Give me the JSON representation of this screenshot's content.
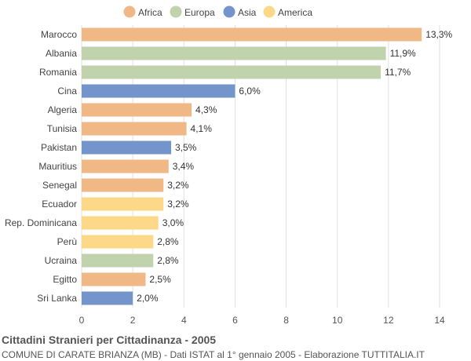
{
  "title": "Cittadini Stranieri per Cittadinanza - 2005",
  "subtitle": "COMUNE DI CARATE BRIANZA (MB) - Dati ISTAT al 1° gennaio 2005 - Elaborazione TUTTITALIA.IT",
  "chart_data": {
    "type": "bar",
    "orientation": "horizontal",
    "categories": [
      "Marocco",
      "Albania",
      "Romania",
      "Cina",
      "Algeria",
      "Tunisia",
      "Pakistan",
      "Mauritius",
      "Senegal",
      "Ecuador",
      "Rep. Dominicana",
      "Perù",
      "Ucraina",
      "Egitto",
      "Sri Lanka"
    ],
    "values": [
      13.3,
      11.9,
      11.7,
      6.0,
      4.3,
      4.1,
      3.5,
      3.4,
      3.2,
      3.2,
      3.0,
      2.8,
      2.8,
      2.5,
      2.0
    ],
    "value_labels": [
      "13,3%",
      "11,9%",
      "11,7%",
      "6,0%",
      "4,3%",
      "4,1%",
      "3,5%",
      "3,4%",
      "3,2%",
      "3,2%",
      "3,0%",
      "2,8%",
      "2,8%",
      "2,5%",
      "2,0%"
    ],
    "groups": [
      "Africa",
      "Europa",
      "Europa",
      "Asia",
      "Africa",
      "Africa",
      "Asia",
      "Africa",
      "Africa",
      "America",
      "America",
      "America",
      "Europa",
      "Africa",
      "Asia"
    ],
    "legend": [
      {
        "name": "Africa",
        "color": "#f0b885"
      },
      {
        "name": "Europa",
        "color": "#c0d3ad"
      },
      {
        "name": "Asia",
        "color": "#7495cc"
      },
      {
        "name": "America",
        "color": "#fdd888"
      }
    ],
    "legend_position": "top",
    "xlim": [
      0,
      14
    ],
    "xticks": [
      0,
      2,
      4,
      6,
      8,
      10,
      12,
      14
    ],
    "grid": true
  }
}
